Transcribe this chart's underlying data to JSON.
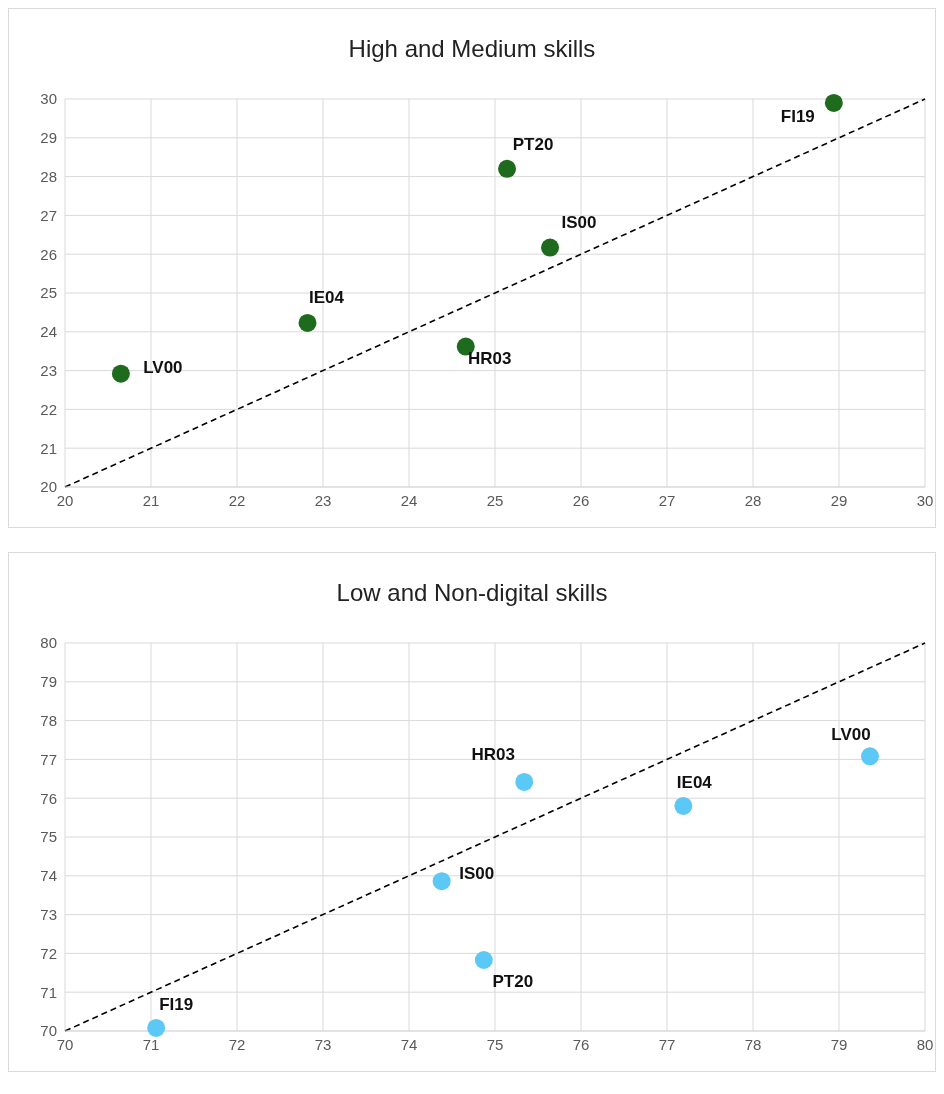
{
  "chart_data": [
    {
      "type": "scatter",
      "title": "High and Medium skills",
      "xlim": [
        20,
        30
      ],
      "ylim": [
        20,
        30
      ],
      "xticks": [
        20,
        21,
        22,
        23,
        24,
        25,
        26,
        27,
        28,
        29,
        30
      ],
      "yticks": [
        20,
        21,
        22,
        23,
        24,
        25,
        26,
        27,
        28,
        29,
        30
      ],
      "grid": true,
      "marker": "circle",
      "series": [
        {
          "color": "#1e6b1e",
          "x": [
            20.65,
            22.82,
            24.66,
            25.14,
            25.64,
            28.94
          ],
          "values": [
            22.92,
            24.23,
            23.62,
            28.2,
            26.17,
            29.9
          ]
        },
        {
          "type": "line",
          "color": "#000000",
          "line_style": "dashed",
          "marker": "none",
          "x": [
            20,
            30
          ],
          "values": [
            20,
            30
          ]
        }
      ],
      "annotations": [
        {
          "text": "LV00",
          "x": 20.65,
          "y": 22.92
        },
        {
          "text": "IE04",
          "x": 22.82,
          "y": 24.23
        },
        {
          "text": "HR03",
          "x": 24.66,
          "y": 23.62
        },
        {
          "text": "PT20",
          "x": 25.14,
          "y": 28.2
        },
        {
          "text": "IS00",
          "x": 25.64,
          "y": 26.17
        },
        {
          "text": "FI19",
          "x": 28.94,
          "y": 29.9
        }
      ]
    },
    {
      "type": "scatter",
      "title": "Low and Non-digital skills",
      "xlim": [
        70,
        80
      ],
      "ylim": [
        70,
        80
      ],
      "xticks": [
        70,
        71,
        72,
        73,
        74,
        75,
        76,
        77,
        78,
        79,
        80
      ],
      "yticks": [
        70,
        71,
        72,
        73,
        74,
        75,
        76,
        77,
        78,
        79,
        80
      ],
      "grid": true,
      "marker": "circle",
      "series": [
        {
          "color": "#5bc8f5",
          "x": [
            71.06,
            74.87,
            74.38,
            75.34,
            77.19,
            79.36
          ],
          "values": [
            70.08,
            71.83,
            73.86,
            76.42,
            75.8,
            77.08
          ]
        },
        {
          "type": "line",
          "color": "#000000",
          "line_style": "dashed",
          "marker": "none",
          "x": [
            70,
            80
          ],
          "values": [
            70,
            80
          ]
        }
      ],
      "annotations": [
        {
          "text": "FI19",
          "x": 71.06,
          "y": 70.08
        },
        {
          "text": "PT20",
          "x": 74.87,
          "y": 71.83
        },
        {
          "text": "IS00",
          "x": 74.38,
          "y": 73.86
        },
        {
          "text": "HR03",
          "x": 75.34,
          "y": 76.42
        },
        {
          "text": "IE04",
          "x": 77.19,
          "y": 75.8
        },
        {
          "text": "LV00",
          "x": 79.36,
          "y": 77.08
        }
      ]
    }
  ]
}
